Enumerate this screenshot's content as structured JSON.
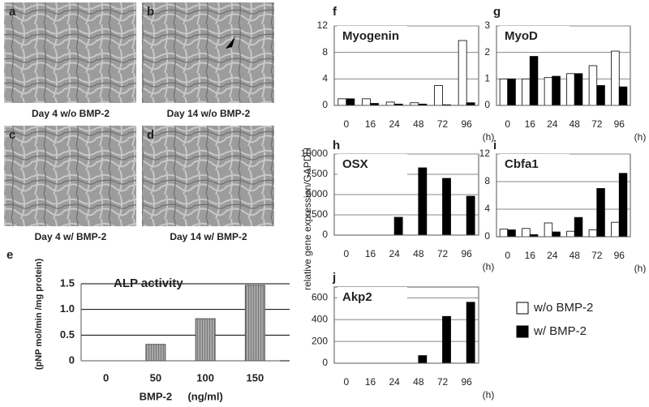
{
  "panels": [
    {
      "letter": "a",
      "caption": "Day 4 w/o BMP-2"
    },
    {
      "letter": "b",
      "caption": "Day 14 w/o BMP-2"
    },
    {
      "letter": "c",
      "caption": "Day 4 w/ BMP-2"
    },
    {
      "letter": "d",
      "caption": "Day 14 w/ BMP-2"
    }
  ],
  "ylabel": "relative gene expression/GAPDH",
  "legend": [
    {
      "name": "w/o BMP-2",
      "color": "#ffffff"
    },
    {
      "name": "w/  BMP-2",
      "color": "#000000"
    }
  ],
  "chart_data": [
    {
      "type": "bar",
      "panel": "e",
      "title": "ALP activity",
      "ylabel": "(pNP mol/min /mg protein)",
      "xlabel": "BMP-2",
      "xunit": "(ng/ml)",
      "categories": [
        "0",
        "50",
        "100",
        "150"
      ],
      "values": [
        0,
        0.32,
        0.82,
        1.47
      ],
      "color": "#9a9a9a",
      "ylim": [
        0,
        1.5
      ],
      "yticks": [
        0,
        0.5,
        {
          "value": 1,
          "label": "1.0"
        },
        1.5
      ],
      "grid": true
    },
    {
      "type": "grouped-bar",
      "panel": "f",
      "title": "Myogenin",
      "xunit": "(h)",
      "categories": [
        "0",
        "16",
        "24",
        "48",
        "72",
        "96"
      ],
      "series": [
        {
          "color": "#ffffff",
          "values": [
            1.0,
            1.0,
            0.5,
            0.4,
            3.0,
            9.8
          ]
        },
        {
          "color": "#000000",
          "values": [
            1.0,
            0.3,
            0.2,
            0.2,
            0.1,
            0.4
          ]
        }
      ],
      "ylim": [
        0,
        12
      ],
      "yticks": [
        0,
        4,
        8,
        12
      ],
      "grid": true
    },
    {
      "type": "grouped-bar",
      "panel": "g",
      "title": "MyoD",
      "xunit": "(h)",
      "categories": [
        "0",
        "16",
        "24",
        "48",
        "72",
        "96"
      ],
      "series": [
        {
          "color": "#ffffff",
          "values": [
            1.0,
            1.0,
            1.05,
            1.2,
            1.5,
            2.05
          ]
        },
        {
          "color": "#000000",
          "values": [
            1.0,
            1.85,
            1.1,
            1.2,
            0.75,
            0.7
          ]
        }
      ],
      "ylim": [
        0,
        3
      ],
      "yticks": [
        0,
        1,
        2,
        3
      ],
      "grid": true
    },
    {
      "type": "grouped-bar",
      "panel": "h",
      "title": "OSX",
      "xunit": "(h)",
      "categories": [
        "0",
        "16",
        "24",
        "48",
        "72",
        "96"
      ],
      "series": [
        {
          "color": "#ffffff",
          "values": [
            0,
            0,
            0,
            0,
            0,
            0
          ]
        },
        {
          "color": "#000000",
          "values": [
            0,
            0,
            2200,
            8300,
            7000,
            4800
          ]
        }
      ],
      "ylim": [
        0,
        10000
      ],
      "yticks": [
        0,
        2500,
        5000,
        7500,
        10000
      ],
      "grid": true
    },
    {
      "type": "grouped-bar",
      "panel": "i",
      "title": "Cbfa1",
      "xunit": "(h)",
      "categories": [
        "0",
        "16",
        "24",
        "48",
        "72",
        "96"
      ],
      "series": [
        {
          "color": "#ffffff",
          "values": [
            1.1,
            1.2,
            2.0,
            0.8,
            1.0,
            2.1
          ]
        },
        {
          "color": "#000000",
          "values": [
            1.0,
            0.3,
            0.7,
            2.8,
            7.0,
            9.2
          ]
        }
      ],
      "ylim": [
        0,
        12
      ],
      "yticks": [
        0,
        4,
        8,
        12
      ],
      "grid": true
    },
    {
      "type": "grouped-bar",
      "panel": "j",
      "title": "Akp2",
      "xunit": "(h)",
      "categories": [
        "0",
        "16",
        "24",
        "48",
        "72",
        "96"
      ],
      "series": [
        {
          "color": "#ffffff",
          "values": [
            0,
            0,
            0,
            0,
            0,
            0
          ]
        },
        {
          "color": "#000000",
          "values": [
            0,
            0,
            0,
            70,
            430,
            560
          ]
        }
      ],
      "ylim": [
        0,
        700
      ],
      "yticks": [
        0,
        200,
        400,
        600
      ],
      "grid": true
    }
  ]
}
